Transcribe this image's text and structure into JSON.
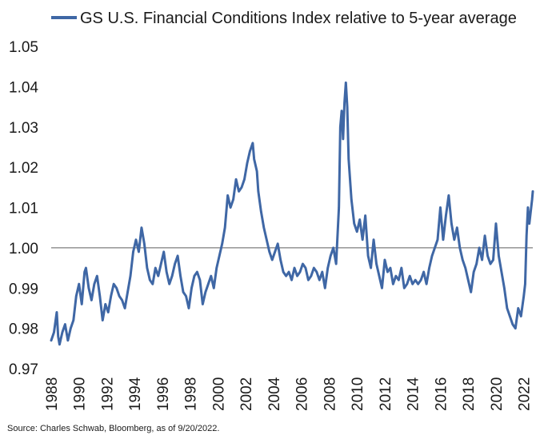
{
  "chart_data": {
    "type": "line",
    "title": "",
    "xlabel": "",
    "ylabel": "",
    "xlim": [
      1988.0,
      2022.65
    ],
    "ylim": [
      0.97,
      1.05
    ],
    "grid": false,
    "reference_line": 1.0,
    "legend_position": "top",
    "x_ticks": [
      1988,
      1990,
      1992,
      1994,
      1996,
      1998,
      2000,
      2002,
      2004,
      2006,
      2008,
      2010,
      2012,
      2014,
      2016,
      2018,
      2020,
      2022
    ],
    "x_tick_labels": [
      "1988",
      "1990",
      "1992",
      "1994",
      "1996",
      "1998",
      "2000",
      "2002",
      "2004",
      "2006",
      "2008",
      "2010",
      "2012",
      "2014",
      "2016",
      "2018",
      "2020",
      "2022"
    ],
    "y_ticks": [
      0.97,
      0.98,
      0.99,
      1.0,
      1.01,
      1.02,
      1.03,
      1.04,
      1.05
    ],
    "y_tick_labels": [
      "0.97",
      "0.98",
      "0.99",
      "1.00",
      "1.01",
      "1.02",
      "1.03",
      "1.04",
      "1.05"
    ],
    "series": [
      {
        "name": "GS U.S. Financial Conditions Index relative to 5-year average",
        "color": "#3f67a5",
        "x": [
          1988.0,
          1988.2,
          1988.4,
          1988.5,
          1988.6,
          1988.8,
          1989.0,
          1989.2,
          1989.4,
          1989.6,
          1989.8,
          1990.0,
          1990.2,
          1990.4,
          1990.5,
          1990.7,
          1990.9,
          1991.1,
          1991.3,
          1991.5,
          1991.7,
          1991.9,
          1992.1,
          1992.3,
          1992.5,
          1992.7,
          1992.9,
          1993.1,
          1993.3,
          1993.5,
          1993.7,
          1993.9,
          1994.1,
          1994.3,
          1994.5,
          1994.7,
          1994.9,
          1995.1,
          1995.3,
          1995.5,
          1995.7,
          1995.9,
          1996.1,
          1996.3,
          1996.5,
          1996.7,
          1996.9,
          1997.1,
          1997.3,
          1997.5,
          1997.7,
          1997.9,
          1998.1,
          1998.3,
          1998.5,
          1998.7,
          1998.9,
          1999.1,
          1999.3,
          1999.5,
          1999.7,
          1999.9,
          2000.1,
          2000.3,
          2000.5,
          2000.7,
          2000.9,
          2001.1,
          2001.3,
          2001.5,
          2001.7,
          2001.9,
          2002.1,
          2002.3,
          2002.5,
          2002.6,
          2002.8,
          2002.9,
          2003.1,
          2003.3,
          2003.5,
          2003.7,
          2003.9,
          2004.1,
          2004.3,
          2004.5,
          2004.7,
          2004.9,
          2005.1,
          2005.3,
          2005.5,
          2005.7,
          2005.9,
          2006.1,
          2006.3,
          2006.5,
          2006.7,
          2006.9,
          2007.1,
          2007.3,
          2007.5,
          2007.7,
          2007.9,
          2008.1,
          2008.3,
          2008.5,
          2008.7,
          2008.8,
          2008.9,
          2009.0,
          2009.1,
          2009.2,
          2009.3,
          2009.4,
          2009.6,
          2009.8,
          2010.0,
          2010.2,
          2010.4,
          2010.6,
          2010.8,
          2011.0,
          2011.2,
          2011.4,
          2011.6,
          2011.8,
          2012.0,
          2012.2,
          2012.4,
          2012.6,
          2012.8,
          2013.0,
          2013.2,
          2013.4,
          2013.6,
          2013.8,
          2014.0,
          2014.2,
          2014.4,
          2014.6,
          2014.8,
          2015.0,
          2015.2,
          2015.4,
          2015.6,
          2015.8,
          2016.0,
          2016.2,
          2016.4,
          2016.6,
          2016.8,
          2017.0,
          2017.2,
          2017.4,
          2017.6,
          2017.8,
          2018.0,
          2018.2,
          2018.4,
          2018.6,
          2018.8,
          2019.0,
          2019.2,
          2019.4,
          2019.6,
          2019.8,
          2020.0,
          2020.2,
          2020.4,
          2020.6,
          2020.8,
          2021.0,
          2021.2,
          2021.4,
          2021.6,
          2021.8,
          2022.0,
          2022.1,
          2022.2,
          2022.3,
          2022.4,
          2022.5,
          2022.6,
          2022.65
        ],
        "values": [
          0.977,
          0.979,
          0.984,
          0.978,
          0.976,
          0.979,
          0.981,
          0.977,
          0.98,
          0.982,
          0.988,
          0.991,
          0.986,
          0.994,
          0.995,
          0.99,
          0.987,
          0.991,
          0.993,
          0.988,
          0.982,
          0.986,
          0.984,
          0.988,
          0.991,
          0.99,
          0.988,
          0.987,
          0.985,
          0.989,
          0.993,
          0.999,
          1.002,
          0.999,
          1.005,
          1.001,
          0.995,
          0.992,
          0.991,
          0.995,
          0.993,
          0.996,
          0.999,
          0.994,
          0.991,
          0.993,
          0.996,
          0.998,
          0.993,
          0.989,
          0.988,
          0.985,
          0.99,
          0.993,
          0.994,
          0.992,
          0.986,
          0.989,
          0.991,
          0.993,
          0.99,
          0.995,
          0.998,
          1.001,
          1.005,
          1.013,
          1.01,
          1.012,
          1.017,
          1.014,
          1.015,
          1.017,
          1.021,
          1.024,
          1.026,
          1.022,
          1.019,
          1.014,
          1.009,
          1.005,
          1.002,
          0.999,
          0.997,
          0.999,
          1.001,
          0.997,
          0.994,
          0.993,
          0.994,
          0.992,
          0.995,
          0.993,
          0.994,
          0.996,
          0.995,
          0.992,
          0.993,
          0.995,
          0.994,
          0.992,
          0.994,
          0.99,
          0.995,
          0.998,
          1.0,
          0.996,
          1.01,
          1.03,
          1.034,
          1.027,
          1.036,
          1.041,
          1.035,
          1.022,
          1.012,
          1.006,
          1.004,
          1.007,
          1.002,
          1.008,
          0.998,
          0.995,
          1.002,
          0.996,
          0.993,
          0.99,
          0.997,
          0.994,
          0.995,
          0.991,
          0.993,
          0.992,
          0.995,
          0.99,
          0.991,
          0.993,
          0.991,
          0.992,
          0.991,
          0.992,
          0.994,
          0.991,
          0.995,
          0.998,
          1.0,
          1.002,
          1.01,
          1.002,
          1.008,
          1.013,
          1.006,
          1.002,
          1.005,
          1.0,
          0.997,
          0.995,
          0.992,
          0.989,
          0.994,
          0.996,
          1.0,
          0.997,
          1.003,
          0.998,
          0.996,
          0.997,
          1.006,
          0.998,
          0.994,
          0.99,
          0.985,
          0.983,
          0.981,
          0.98,
          0.985,
          0.983,
          0.988,
          0.991,
          1.003,
          1.01,
          1.006,
          1.009,
          1.012,
          1.014
        ]
      }
    ],
    "source": "Source: Charles Schwab, Bloomberg, as of 9/20/2022."
  }
}
